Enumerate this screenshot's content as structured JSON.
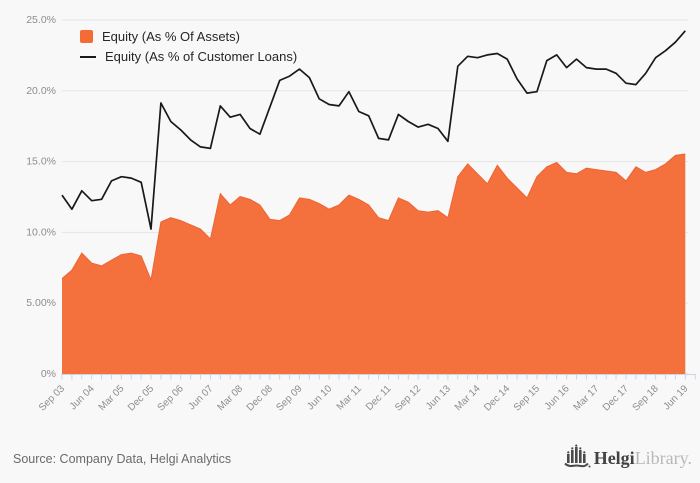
{
  "chart_data": {
    "type": "area+line",
    "title": "",
    "x_tick_labels": [
      "Sep 03",
      "Jun 04",
      "Mar 05",
      "Dec 05",
      "Sep 06",
      "Jun 07",
      "Mar 08",
      "Dec 08",
      "Sep 09",
      "Jun 10",
      "Mar 11",
      "Dec 11",
      "Sep 12",
      "Jun 13",
      "Mar 14",
      "Dec 14",
      "Sep 15",
      "Jun 16",
      "Mar 17",
      "Dec 17",
      "Sep 18",
      "Jun 19"
    ],
    "label_every_n_points": 3,
    "points_total": 64,
    "y_tick_labels": [
      "25.0%",
      "20.0%",
      "15.0%",
      "10.0%",
      "5.00%",
      "0%"
    ],
    "y_tick_values": [
      25,
      20,
      15,
      10,
      5,
      0
    ],
    "ylim": [
      0,
      25
    ],
    "grid": "horizontal",
    "legend_position": "top-left",
    "series": [
      {
        "name": "Equity (As % Of Assets)",
        "type": "area",
        "color": "#f4703c",
        "edge_color": "#ee6434",
        "values": [
          6.7,
          7.3,
          8.5,
          7.8,
          7.6,
          8.0,
          8.4,
          8.5,
          8.3,
          6.6,
          10.7,
          11.0,
          10.8,
          10.5,
          10.2,
          9.5,
          12.7,
          11.9,
          12.5,
          12.3,
          11.9,
          10.9,
          10.8,
          11.2,
          12.4,
          12.3,
          12.0,
          11.6,
          11.9,
          12.6,
          12.3,
          11.9,
          11.0,
          10.8,
          12.4,
          12.1,
          11.5,
          11.4,
          11.5,
          11.0,
          13.9,
          14.8,
          14.1,
          13.4,
          14.7,
          13.8,
          13.1,
          12.4,
          13.9,
          14.6,
          14.9,
          14.2,
          14.1,
          14.5,
          14.4,
          14.3,
          14.2,
          13.6,
          14.6,
          14.2,
          14.4,
          14.8,
          15.4,
          15.5
        ]
      },
      {
        "name": "Equity (As % of Customer Loans)",
        "type": "line",
        "color": "#191919",
        "values": [
          12.6,
          11.6,
          12.9,
          12.2,
          12.3,
          13.6,
          13.9,
          13.8,
          13.5,
          10.2,
          19.1,
          17.8,
          17.2,
          16.5,
          16.0,
          15.9,
          18.9,
          18.1,
          18.3,
          17.3,
          16.9,
          18.8,
          20.7,
          21.0,
          21.5,
          20.9,
          19.4,
          19.0,
          18.9,
          19.9,
          18.5,
          18.2,
          16.6,
          16.5,
          18.3,
          17.8,
          17.4,
          17.6,
          17.3,
          16.4,
          21.7,
          22.4,
          22.3,
          22.5,
          22.6,
          22.2,
          20.8,
          19.8,
          19.9,
          22.1,
          22.5,
          21.6,
          22.2,
          21.6,
          21.5,
          21.5,
          21.2,
          20.5,
          20.4,
          21.2,
          22.3,
          22.8,
          23.4,
          24.2
        ]
      }
    ]
  },
  "footer": {
    "source_text": "Source: Company Data, Helgi Analytics",
    "logo_helgi": "Helgi",
    "logo_library": "Library."
  },
  "colors": {
    "background": "#f8f8f8",
    "gridline": "#e5e5e5",
    "axis_tick": "#ccd4e5",
    "axis_label": "#8d8d8d",
    "legend_text": "#262626",
    "series_area": "#f4703c",
    "series_line": "#191919"
  }
}
